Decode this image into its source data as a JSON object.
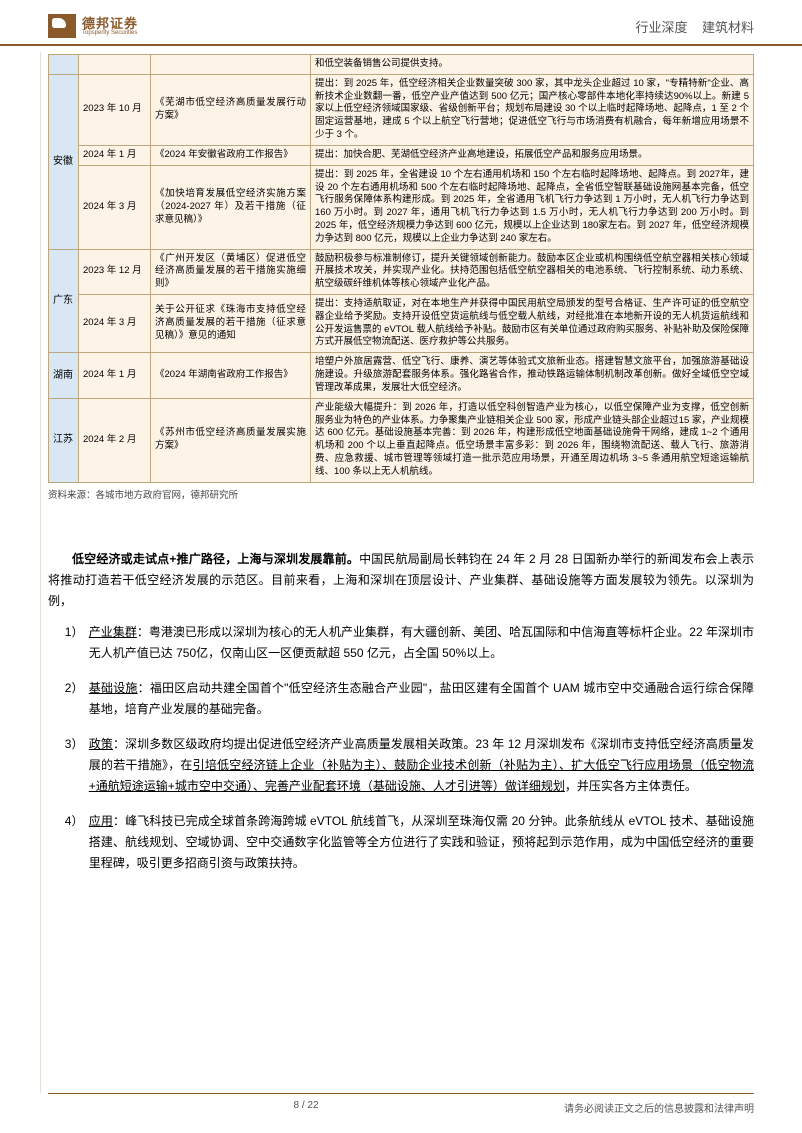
{
  "header": {
    "brand_cn": "德邦证券",
    "brand_en": "Topsperity Securities",
    "category": "行业深度",
    "sector": "建筑材料"
  },
  "table": {
    "rows": [
      {
        "province": "",
        "date": "",
        "doc": "",
        "content": "和低空装备销售公司提供支持。",
        "first": true
      },
      {
        "province": "安徽",
        "rowspan": 3,
        "date": "2023 年 10 月",
        "doc": "《芜湖市低空经济高质量发展行动方案》",
        "content": "提出：到 2025 年，低空经济相关企业数量突破 300 家，其中龙头企业超过 10 家，\"专精特新\"企业、高新技术企业数翻一番，低空产业产值达到 500 亿元；国产核心零部件本地化率持续达90%以上。新建 5 家以上低空经济领域国家级、省级创新平台；规划布局建设 30 个以上临时起降场地、起降点，1 至 2 个固定运营基地，建成 5 个以上航空飞行营地；促进低空飞行与市场消费有机融合，每年新增应用场景不少于 3 个。"
      },
      {
        "date": "2024 年 1 月",
        "doc": "《2024 年安徽省政府工作报告》",
        "content": "提出：加快合肥、芜湖低空经济产业高地建设，拓展低空产品和服务应用场景。"
      },
      {
        "date": "2024 年 3 月",
        "doc": "《加快培育发展低空经济实施方案（2024-2027 年）及若干措施（征求意见稿）》",
        "content": "提出：到 2025 年，全省建设 10 个左右通用机场和 150 个左右临时起降场地、起降点。到 2027年，建设 20 个左右通用机场和 500 个左右临时起降场地、起降点，全省低空智联基础设施网基本完备，低空飞行服务保障体系构建形成。到 2025 年，全省通用飞机飞行力争达到 1 万小时，无人机飞行力争达到 160 万小时。到 2027 年，通用飞机飞行力争达到 1.5 万小时，无人机飞行力争达到 200 万小时。到 2025 年，低空经济规模力争达到 600 亿元，规模以上企业达到 180家左右。到 2027 年，低空经济规模力争达到 800 亿元，规模以上企业力争达到 240 家左右。"
      },
      {
        "province": "广东",
        "rowspan": 2,
        "date": "2023 年 12 月",
        "doc": "《广州开发区（黄埔区）促进低空经济高质量发展的若干措施实施细则》",
        "content": "鼓励积极参与标准制修订，提升关键领域创新能力。鼓励本区企业或机构围绕低空航空器相关核心领域开展技术攻关，并实现产业化。扶持范围包括低空航空器相关的电池系统、飞行控制系统、动力系统、航空级碳纤维机体等核心领域产业化产品。"
      },
      {
        "date": "2024 年 3 月",
        "doc": "关于公开征求《珠海市支持低空经济高质量发展的若干措施（征求意见稿）》意见的通知",
        "content": "提出：支持适航取证，对在本地生产并获得中国民用航空局颁发的型号合格证、生产许可证的低空航空器企业给予奖励。支持开设低空货运航线与低空载人航线，对经批准在本地新开设的无人机货运航线和公开发运售票的 eVTOL 载人航线给予补贴。鼓励市区有关单位通过政府购买服务、补贴补助及保险保障方式开展低空物流配送、医疗救护等公共服务。"
      },
      {
        "province": "湖南",
        "rowspan": 1,
        "date": "2024 年 1 月",
        "doc": "《2024 年湖南省政府工作报告》",
        "content": "培塑户外旅居露营、低空飞行、康养、演艺等体验式文旅新业态。搭建智慧文旅平台，加强旅游基础设施建设。升级旅游配套服务体系。强化路省合作，推动铁路运输体制机制改革创新。做好全域低空空域管理改革成果，发展壮大低空经济。"
      },
      {
        "province": "江苏",
        "rowspan": 1,
        "date": "2024 年 2 月",
        "doc": "《苏州市低空经济高质量发展实施方案》",
        "content": "产业能级大幅提升：到 2026 年，打造以低空科创智造产业为核心，以低空保障产业为支撑，低空创新服务业为特色的产业体系。力争聚集产业链相关企业 500 家，形成产业链头部企业超过15 家，产业规模达 600 亿元。基础设施基本完善：到 2026 年，构建形成低空地面基础设施骨干网络，建成 1~2 个通用机场和 200 个以上垂直起降点。低空场景丰富多彩：到 2026 年，围绕物流配送、载人飞行、旅游消费、应急救援、城市管理等领域打造一批示范应用场景，开通至周边机场 3~5 条通用航空短途运输航线、100 条以上无人机航线。"
      }
    ],
    "source": "资料来源：各城市地方政府官网，德邦研究所"
  },
  "body": {
    "lead_bold": "低空经济或走试点+推广路径，上海与深圳发展靠前。",
    "lead_rest": "中国民航局副局长韩钧在 24 年 2 月 28 日国新办举行的新闻发布会上表示将推动打造若干低空经济发展的示范区。目前来看，上海和深圳在顶层设计、产业集群、基础设施等方面发展较为领先。以深圳为例，",
    "items": [
      {
        "num": "1）",
        "label": "产业集群",
        "text": "：粤港澳已形成以深圳为核心的无人机产业集群，有大疆创新、美团、哈瓦国际和中信海直等标杆企业。22 年深圳市无人机产值已达 750亿，仅南山区一区便贡献超 550 亿元，占全国 50%以上。"
      },
      {
        "num": "2）",
        "label": "基础设施",
        "text": "：福田区启动共建全国首个\"低空经济生态融合产业园\"，盐田区建有全国首个 UAM 城市空中交通融合运行综合保障基地，培育产业发展的基础完备。"
      },
      {
        "num": "3）",
        "label": "政策",
        "text_pre": "：深圳多数区级政府均提出促进低空经济产业高质量发展相关政策。23 年 12 月深圳发布《深圳市支持低空经济高质量发展的若干措施》，在",
        "text_ul": "引培低空经济链上企业（补贴为主）、鼓励企业技术创新（补贴为主）、扩大低空飞行应用场景（低空物流+通航短途运输+城市空中交通）、完善产业配套环境（基础设施、人才引进等）做详细规划",
        "text_post": "，并压实各方主体责任。"
      },
      {
        "num": "4）",
        "label": "应用",
        "text": "：峰飞科技已完成全球首条跨海跨城 eVTOL 航线首飞，从深圳至珠海仅需 20 分钟。此条航线从 eVTOL 技术、基础设施搭建、航线规划、空域协调、空中交通数字化监管等全方位进行了实践和验证，预将起到示范作用，成为中国低空经济的重要里程碑，吸引更多招商引资与政策扶持。"
      }
    ]
  },
  "footer": {
    "page": "8 / 22",
    "disclaimer": "请务必阅读正文之后的信息披露和法律声明"
  }
}
